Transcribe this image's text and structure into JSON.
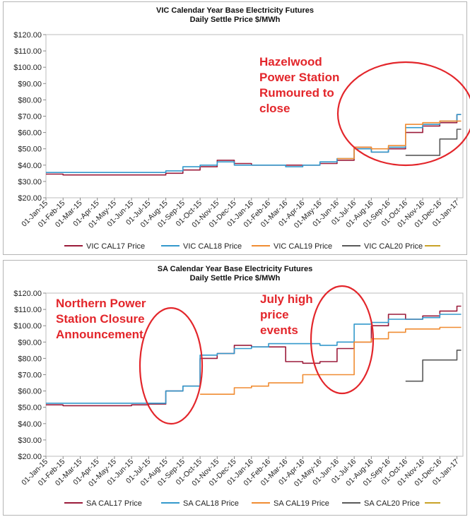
{
  "chart_data": [
    {
      "type": "line",
      "title": "VIC Calendar Year Base Electricity Futures",
      "subtitle": "Daily Settle Price $/MWh",
      "x": [
        "01-Jan-15",
        "01-Feb-15",
        "01-Mar-15",
        "01-Apr-15",
        "01-May-15",
        "01-Jun-15",
        "01-Jul-15",
        "01-Aug-15",
        "01-Sep-15",
        "01-Oct-15",
        "01-Nov-15",
        "01-Dec-15",
        "01-Jan-16",
        "01-Feb-16",
        "01-Mar-16",
        "01-Apr-16",
        "01-May-16",
        "01-Jun-16",
        "01-Jul-16",
        "01-Aug-16",
        "01-Sep-16",
        "01-Oct-16",
        "01-Nov-16",
        "01-Dec-16",
        "01-Jan-17"
      ],
      "y_tick_labels": [
        "$20.00",
        "$30.00",
        "$40.00",
        "$50.00",
        "$60.00",
        "$70.00",
        "$80.00",
        "$90.00",
        "$100.00",
        "$110.00",
        "$120.00"
      ],
      "ylim": [
        20,
        120
      ],
      "legend": "bottom",
      "legend_extra_swatch": "#c9a227",
      "annotation": "Hazelwood\nPower Station\nRumoured to\nclose",
      "series": [
        {
          "name": "VIC CAL17 Price",
          "color": "#9b1b3a",
          "values": [
            34.5,
            34,
            34,
            34,
            34,
            34,
            34,
            35,
            37,
            39,
            43,
            41,
            40,
            40,
            40,
            40,
            41,
            43,
            51,
            48,
            50,
            60,
            64,
            66,
            71
          ]
        },
        {
          "name": "VIC CAL18 Price",
          "color": "#3399cc",
          "values": [
            35.5,
            35.5,
            35.5,
            35.5,
            35.5,
            35.5,
            35.5,
            36.5,
            39,
            40,
            42,
            40,
            40,
            40,
            39,
            40,
            42,
            44,
            50,
            48,
            51,
            63,
            65,
            67,
            71
          ]
        },
        {
          "name": "VIC CAL19 Price",
          "color": "#f08c32",
          "values": [
            null,
            null,
            null,
            null,
            null,
            null,
            null,
            null,
            null,
            null,
            null,
            null,
            null,
            null,
            null,
            null,
            null,
            44,
            51,
            50,
            52,
            65,
            66,
            67,
            67
          ]
        },
        {
          "name": "VIC CAL20 Price",
          "color": "#595959",
          "values": [
            null,
            null,
            null,
            null,
            null,
            null,
            null,
            null,
            null,
            null,
            null,
            null,
            null,
            null,
            null,
            null,
            null,
            null,
            null,
            null,
            null,
            46,
            46,
            56,
            62
          ]
        }
      ]
    },
    {
      "type": "line",
      "title": "SA Calendar Year Base Electricity Futures",
      "subtitle": "Daily Settle Price $/MWh",
      "x": [
        "01-Jan-15",
        "01-Feb-15",
        "01-Mar-15",
        "01-Apr-15",
        "01-May-15",
        "01-Jun-15",
        "01-Jul-15",
        "01-Aug-15",
        "01-Sep-15",
        "01-Oct-15",
        "01-Nov-15",
        "01-Dec-15",
        "01-Jan-16",
        "01-Feb-16",
        "01-Mar-16",
        "01-Apr-16",
        "01-May-16",
        "01-Jun-16",
        "01-Jul-16",
        "01-Aug-16",
        "01-Sep-16",
        "01-Oct-16",
        "01-Nov-16",
        "01-Dec-16",
        "01-Jan-17"
      ],
      "y_tick_labels": [
        "$20.00",
        "$30.00",
        "$40.00",
        "$50.00",
        "$60.00",
        "$70.00",
        "$80.00",
        "$90.00",
        "$100.00",
        "$110.00",
        "$120.00"
      ],
      "ylim": [
        20,
        120
      ],
      "legend": "bottom",
      "legend_extra_swatch": "#c9a227",
      "annotations": [
        "Northern Power\nStation Closure\nAnnouncement",
        "July high\nprice\nevents"
      ],
      "series": [
        {
          "name": "SA CAL17 Price",
          "color": "#9b1b3a",
          "values": [
            51.5,
            51,
            51,
            51,
            51,
            51.5,
            52,
            60,
            63,
            80,
            83,
            88,
            87,
            87,
            78,
            77,
            78,
            86,
            90,
            100,
            107,
            104,
            106,
            109,
            112
          ]
        },
        {
          "name": "SA CAL18 Price",
          "color": "#3399cc",
          "values": [
            52.5,
            52.5,
            52.5,
            52.5,
            52.5,
            52.5,
            52.5,
            60,
            63,
            82,
            83,
            86,
            87,
            89,
            89,
            89,
            88,
            90,
            101,
            102,
            104,
            104,
            105,
            107,
            107
          ]
        },
        {
          "name": "SA CAL19 Price",
          "color": "#f08c32",
          "values": [
            null,
            null,
            null,
            null,
            null,
            null,
            null,
            null,
            null,
            58,
            58,
            62,
            63,
            65,
            65,
            70,
            70,
            70,
            90,
            92,
            96,
            98,
            98,
            99,
            99
          ]
        },
        {
          "name": "SA CAL20 Price",
          "color": "#595959",
          "values": [
            null,
            null,
            null,
            null,
            null,
            null,
            null,
            null,
            null,
            null,
            null,
            null,
            null,
            null,
            null,
            null,
            null,
            null,
            null,
            null,
            null,
            66,
            79,
            79,
            85
          ]
        }
      ]
    }
  ]
}
